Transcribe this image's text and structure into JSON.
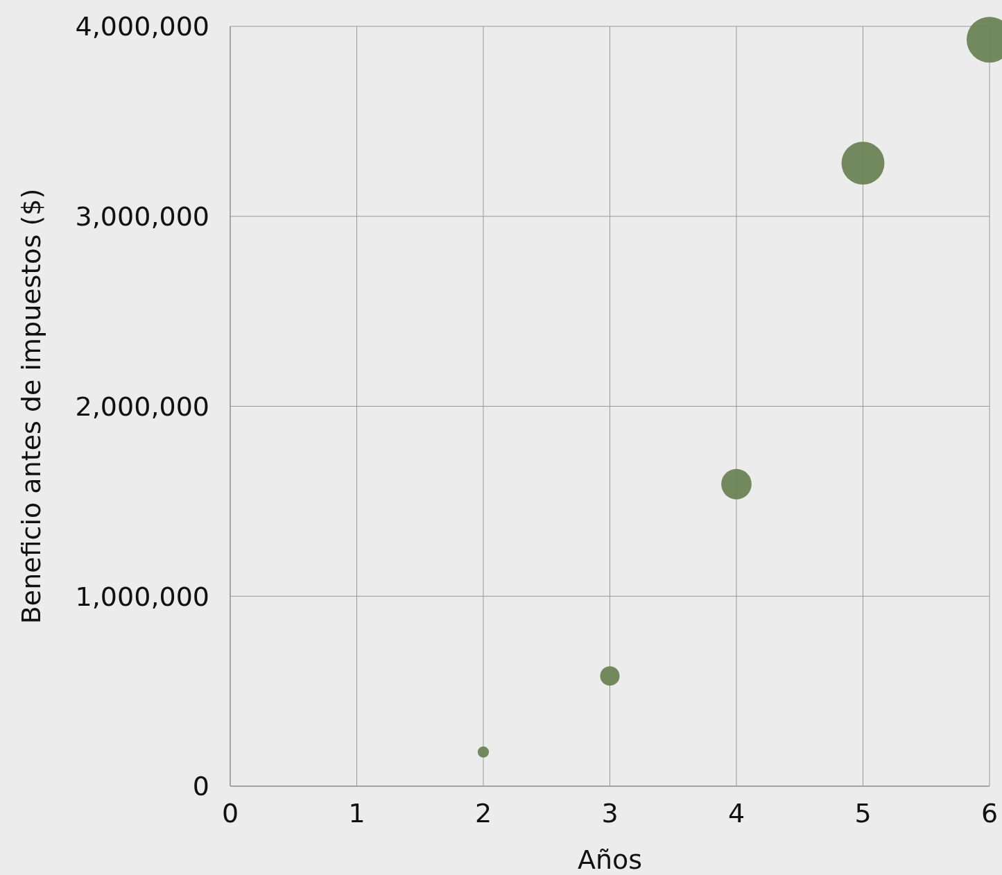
{
  "chart_data": {
    "type": "bubble",
    "xlabel": "Años",
    "ylabel": "Beneficio antes de impuestos ($)",
    "x": [
      2,
      3,
      4,
      5,
      6
    ],
    "series": [
      {
        "color": "#6a8455",
        "values": [
          180000,
          580000,
          1590000,
          3280000,
          3930000
        ],
        "sizes": [
          0.06,
          0.18,
          0.44,
          0.88,
          1
        ]
      }
    ],
    "xlim": [
      0,
      6
    ],
    "xticks": [
      0,
      1,
      2,
      3,
      4,
      5,
      6
    ],
    "ylim": [
      0,
      4000000
    ],
    "yticks": [
      {
        "value": 0,
        "label": "0"
      },
      {
        "value": 1000000,
        "label": "1,000,000"
      },
      {
        "value": 2000000,
        "label": "2,000,000"
      },
      {
        "value": 3000000,
        "label": "3,000,000"
      },
      {
        "value": 4000000,
        "label": "4,000,000"
      }
    ],
    "grid": true
  }
}
